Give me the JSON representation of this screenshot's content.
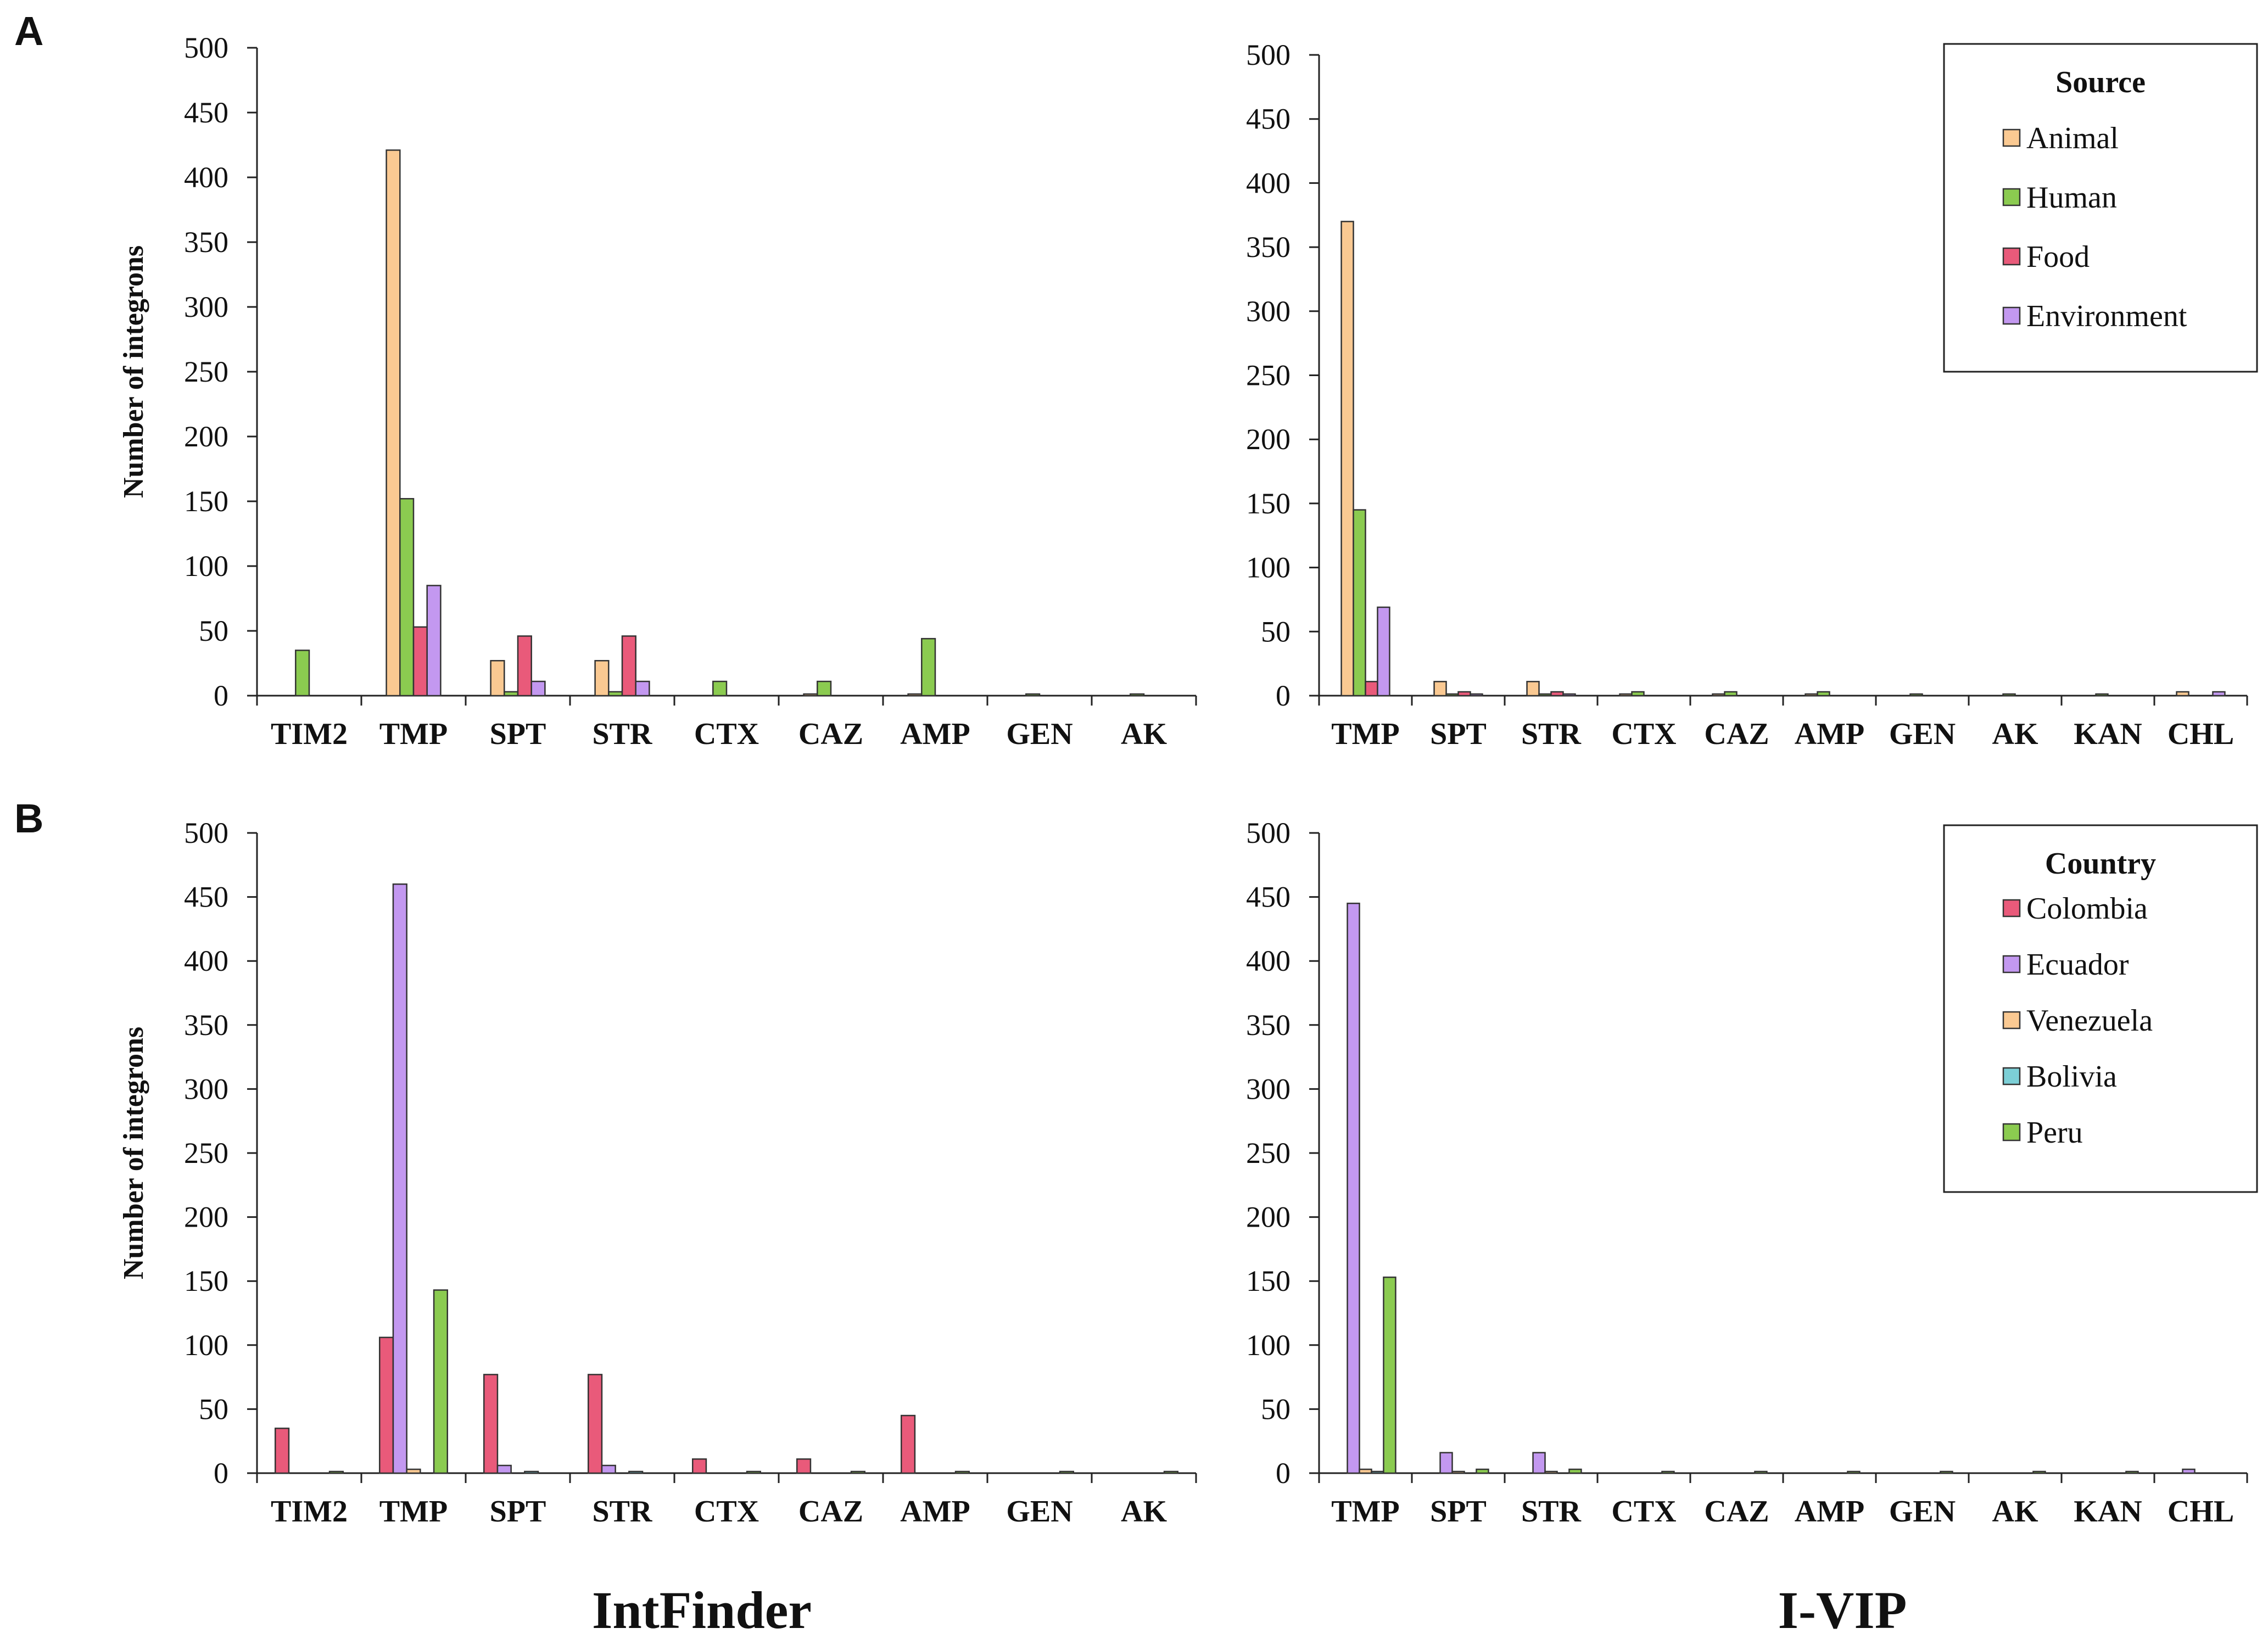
{
  "figure": {
    "panel_labels": [
      "A",
      "B"
    ],
    "bottom_titles": [
      "IntFinder",
      "I-VIP"
    ]
  },
  "legends": {
    "source": {
      "title": "Source",
      "items": [
        {
          "name": "Animal",
          "color": "#FAC992"
        },
        {
          "name": "Human",
          "color": "#8BCB50"
        },
        {
          "name": "Food",
          "color": "#E95A7A"
        },
        {
          "name": "Environment",
          "color": "#C398F0"
        }
      ]
    },
    "country": {
      "title": "Country",
      "items": [
        {
          "name": "Colombia",
          "color": "#E95A7A"
        },
        {
          "name": "Ecuador",
          "color": "#C398F0"
        },
        {
          "name": "Venezuela",
          "color": "#FAC992"
        },
        {
          "name": "Bolivia",
          "color": "#7CCFD6"
        },
        {
          "name": "Peru",
          "color": "#8BCB50"
        }
      ]
    }
  },
  "chart_data": [
    {
      "id": "A-left",
      "panel": "A",
      "type": "bar",
      "xlabel": "IntFinder",
      "ylabel": "Number of integrons",
      "ylim": [
        0,
        500
      ],
      "yticks": [
        0,
        50,
        100,
        150,
        200,
        250,
        300,
        350,
        400,
        450,
        500
      ],
      "legend": "source",
      "categories": [
        "TIM2",
        "TMP",
        "SPT",
        "STR",
        "CTX",
        "CAZ",
        "AMP",
        "GEN",
        "AK"
      ],
      "series": [
        {
          "name": "Animal",
          "color": "#FAC992",
          "values": [
            0,
            421,
            27,
            27,
            0,
            1,
            1,
            0,
            0
          ]
        },
        {
          "name": "Human",
          "color": "#8BCB50",
          "values": [
            35,
            152,
            3,
            3,
            11,
            11,
            44,
            1,
            1
          ]
        },
        {
          "name": "Food",
          "color": "#E95A7A",
          "values": [
            0,
            53,
            46,
            46,
            0,
            0,
            0,
            0,
            0
          ]
        },
        {
          "name": "Environment",
          "color": "#C398F0",
          "values": [
            0,
            85,
            11,
            11,
            0,
            0,
            0,
            0,
            0
          ]
        }
      ]
    },
    {
      "id": "A-right",
      "panel": "A",
      "type": "bar",
      "xlabel": "I-VIP",
      "ylabel": "",
      "ylim": [
        0,
        500
      ],
      "yticks": [
        0,
        50,
        100,
        150,
        200,
        250,
        300,
        350,
        400,
        450,
        500
      ],
      "legend": "source",
      "categories": [
        "TMP",
        "SPT",
        "STR",
        "CTX",
        "CAZ",
        "AMP",
        "GEN",
        "AK",
        "KAN",
        "CHL"
      ],
      "series": [
        {
          "name": "Animal",
          "color": "#FAC992",
          "values": [
            370,
            11,
            11,
            1,
            1,
            1,
            0,
            0,
            0,
            3
          ]
        },
        {
          "name": "Human",
          "color": "#8BCB50",
          "values": [
            145,
            1,
            1,
            3,
            3,
            3,
            1,
            1,
            1,
            0
          ]
        },
        {
          "name": "Food",
          "color": "#E95A7A",
          "values": [
            11,
            3,
            3,
            0,
            0,
            0,
            0,
            0,
            0,
            0
          ]
        },
        {
          "name": "Environment",
          "color": "#C398F0",
          "values": [
            69,
            1,
            1,
            0,
            0,
            0,
            0,
            0,
            0,
            3
          ]
        }
      ]
    },
    {
      "id": "B-left",
      "panel": "B",
      "type": "bar",
      "xlabel": "IntFinder",
      "ylabel": "Number of integrons",
      "ylim": [
        0,
        500
      ],
      "yticks": [
        0,
        50,
        100,
        150,
        200,
        250,
        300,
        350,
        400,
        450,
        500
      ],
      "legend": "country",
      "categories": [
        "TIM2",
        "TMP",
        "SPT",
        "STR",
        "CTX",
        "CAZ",
        "AMP",
        "GEN",
        "AK"
      ],
      "series": [
        {
          "name": "Colombia",
          "color": "#E95A7A",
          "values": [
            35,
            106,
            77,
            77,
            11,
            11,
            45,
            0,
            0
          ]
        },
        {
          "name": "Ecuador",
          "color": "#C398F0",
          "values": [
            0,
            460,
            6,
            6,
            0,
            0,
            0,
            0,
            0
          ]
        },
        {
          "name": "Venezuela",
          "color": "#FAC992",
          "values": [
            0,
            3,
            0,
            0,
            0,
            0,
            0,
            0,
            0
          ]
        },
        {
          "name": "Bolivia",
          "color": "#7CCFD6",
          "values": [
            0,
            0,
            1,
            1,
            0,
            0,
            0,
            0,
            0
          ]
        },
        {
          "name": "Peru",
          "color": "#8BCB50",
          "values": [
            1,
            143,
            0,
            0,
            1,
            1,
            1,
            1,
            1
          ]
        }
      ]
    },
    {
      "id": "B-right",
      "panel": "B",
      "type": "bar",
      "xlabel": "I-VIP",
      "ylabel": "",
      "ylim": [
        0,
        500
      ],
      "yticks": [
        0,
        50,
        100,
        150,
        200,
        250,
        300,
        350,
        400,
        450,
        500
      ],
      "legend": "country",
      "categories": [
        "TMP",
        "SPT",
        "STR",
        "CTX",
        "CAZ",
        "AMP",
        "GEN",
        "AK",
        "KAN",
        "CHL"
      ],
      "series": [
        {
          "name": "Colombia",
          "color": "#E95A7A",
          "values": [
            0,
            0,
            0,
            0,
            0,
            0,
            0,
            0,
            0,
            0
          ]
        },
        {
          "name": "Ecuador",
          "color": "#C398F0",
          "values": [
            445,
            16,
            16,
            0,
            0,
            0,
            0,
            0,
            0,
            3
          ]
        },
        {
          "name": "Venezuela",
          "color": "#FAC992",
          "values": [
            3,
            1,
            1,
            0,
            0,
            0,
            0,
            0,
            0,
            0
          ]
        },
        {
          "name": "Bolivia",
          "color": "#7CCFD6",
          "values": [
            1,
            0,
            0,
            0,
            0,
            0,
            0,
            0,
            0,
            0
          ]
        },
        {
          "name": "Peru",
          "color": "#8BCB50",
          "values": [
            153,
            3,
            3,
            1,
            1,
            1,
            1,
            1,
            1,
            0
          ]
        }
      ]
    }
  ]
}
